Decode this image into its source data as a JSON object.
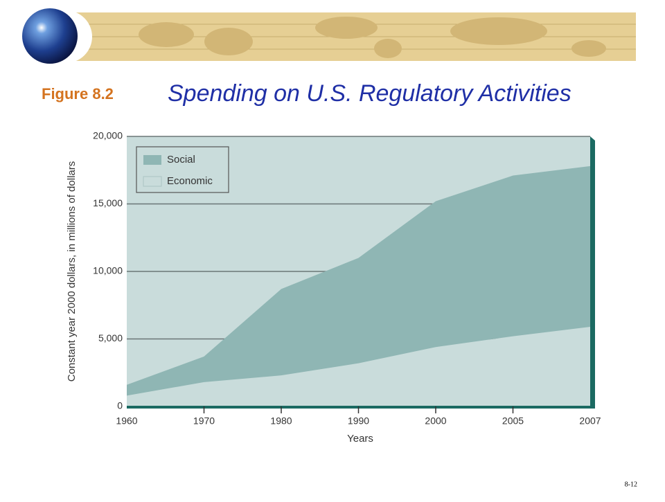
{
  "figure_label": "Figure 8.2",
  "page_number": "8-12",
  "chart_data": {
    "type": "stacked_area",
    "title": "Spending on U.S. Regulatory Activities",
    "x_label": "Years",
    "y_label": "Constant year 2000 dollars, in millions of dollars",
    "categories": [
      "1960",
      "1970",
      "1980",
      "1990",
      "2000",
      "2005",
      "2007"
    ],
    "series": [
      {
        "name": "Economic",
        "color": "#c9dcdb",
        "values": [
          800,
          1800,
          2300,
          3200,
          4400,
          5200,
          5900
        ]
      },
      {
        "name": "Social",
        "color": "#8fb6b4",
        "values": [
          800,
          1900,
          6400,
          7800,
          10800,
          11900,
          11900
        ]
      }
    ],
    "ylim": [
      0,
      20000
    ],
    "yticks": [
      0,
      {
        "value": 5000,
        "label": "5,000"
      },
      {
        "value": 10000,
        "label": "10,000"
      },
      {
        "value": 15000,
        "label": "15,000"
      },
      {
        "value": 20000,
        "label": "20,000"
      }
    ],
    "grid": true,
    "legend": "upper left"
  }
}
